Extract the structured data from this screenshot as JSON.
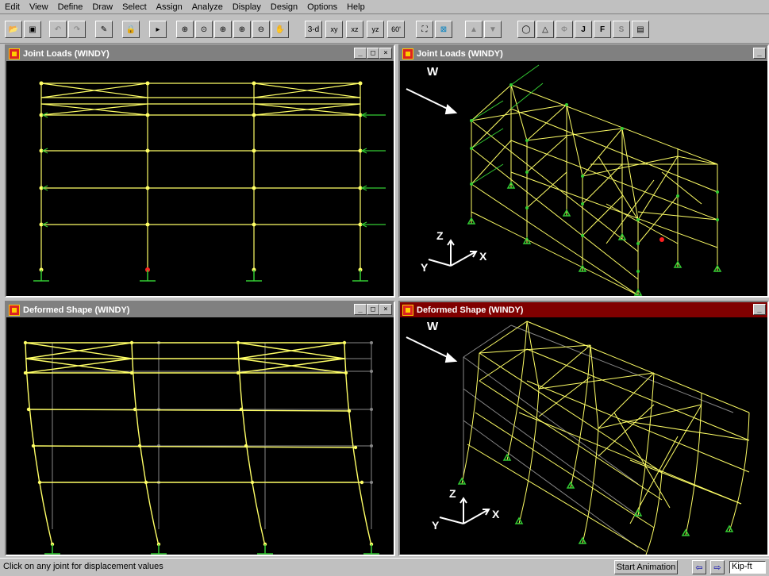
{
  "menu": [
    "Edit",
    "View",
    "Define",
    "Draw",
    "Select",
    "Assign",
    "Analyze",
    "Display",
    "Design",
    "Options",
    "Help"
  ],
  "toolbar": {
    "view_3d": "3-d",
    "view_xy": "xy",
    "view_xz": "xz",
    "view_yz": "yz",
    "view_angle": "60'"
  },
  "panes": {
    "top_left": {
      "title": "Joint Loads (WINDY)",
      "wb_min": "_",
      "wb_max": "□",
      "wb_close": "×"
    },
    "top_right": {
      "title": "Joint Loads (WINDY)",
      "wind_label": "W",
      "axis_z": "Z",
      "axis_x": "X",
      "axis_y": "Y"
    },
    "bottom_left": {
      "title": "Deformed Shape (WINDY)",
      "wb_min": "_",
      "wb_max": "□",
      "wb_close": "×"
    },
    "bottom_right": {
      "title": "Deformed Shape (WINDY)",
      "wind_label": "W",
      "axis_z": "Z",
      "axis_x": "X",
      "axis_y": "Y"
    }
  },
  "status": {
    "message": "Click on any joint for displacement values",
    "start_animation": "Start Animation",
    "units": "Kip-ft"
  },
  "colors": {
    "member": "#ffff66",
    "load": "#33cc33",
    "undeformed": "#888888",
    "active_title": "#800000",
    "inactive_title": "#808080"
  }
}
